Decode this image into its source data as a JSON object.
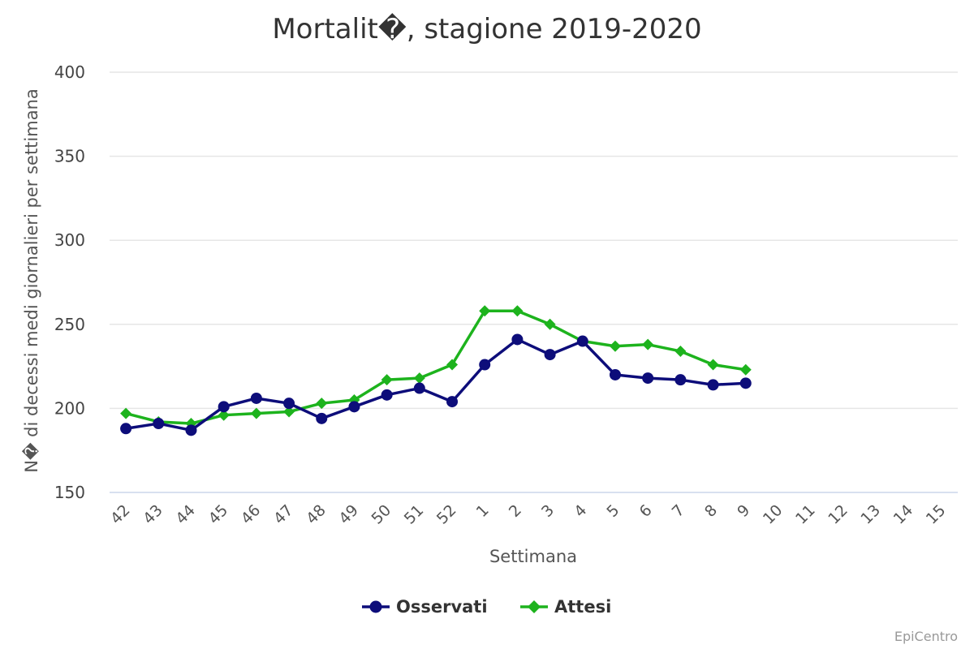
{
  "chart_data": {
    "type": "line",
    "title": "Mortalit�, stagione 2019-2020",
    "xlabel": "Settimana",
    "ylabel": "N� di decessi medi giornalieri per settimana",
    "categories": [
      "42",
      "43",
      "44",
      "45",
      "46",
      "47",
      "48",
      "49",
      "50",
      "51",
      "52",
      "1",
      "2",
      "3",
      "4",
      "5",
      "6",
      "7",
      "8",
      "9",
      "10",
      "11",
      "12",
      "13",
      "14",
      "15"
    ],
    "ylim": [
      150,
      400
    ],
    "yticks": [
      150,
      200,
      250,
      300,
      350,
      400
    ],
    "grid": true,
    "legend_position": "bottom",
    "series": [
      {
        "name": "Osservati",
        "color": "#0d0d7a",
        "marker": "circle",
        "values": [
          188,
          191,
          187,
          201,
          206,
          203,
          194,
          201,
          208,
          212,
          204,
          226,
          241,
          232,
          240,
          220,
          218,
          217,
          214,
          215,
          null,
          null,
          null,
          null,
          null,
          null
        ]
      },
      {
        "name": "Attesi",
        "color": "#1db31d",
        "marker": "diamond",
        "values": [
          197,
          192,
          191,
          196,
          197,
          198,
          203,
          205,
          217,
          218,
          226,
          258,
          258,
          250,
          240,
          237,
          238,
          234,
          226,
          223,
          null,
          null,
          null,
          null,
          null,
          null
        ]
      }
    ]
  },
  "credits": "EpiCentro"
}
